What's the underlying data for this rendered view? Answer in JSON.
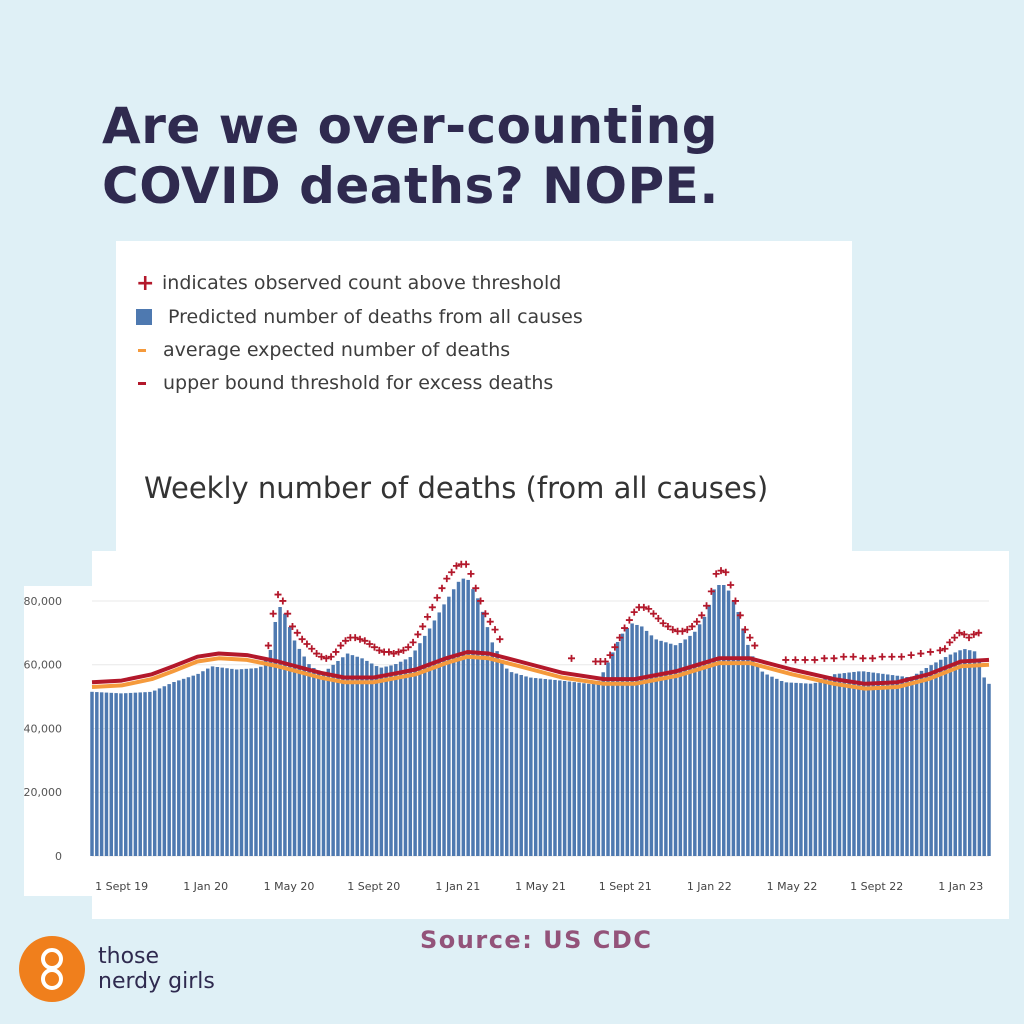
{
  "headline": {
    "line1": "Are we over-counting",
    "line2": "COVID deaths? NOPE."
  },
  "legend": {
    "observed": "indicates observed count above threshold",
    "predicted": "Predicted number of deaths from all causes",
    "average": "average expected number of deaths",
    "upper": "upper bound threshold for excess deaths"
  },
  "source": "Source: US CDC",
  "brand": {
    "line1": "those",
    "line2": "nerdy girls"
  },
  "colors": {
    "bars": "#4e79b0",
    "threshold": "#b3182b",
    "average": "#f59a3c",
    "background": "#dff0f6",
    "headline": "#2f2a4f",
    "source": "#93537a",
    "logo": "#f07f1c"
  },
  "chart_data": {
    "type": "bar",
    "title": "Weekly number of deaths (from all causes)",
    "xlabel": "",
    "ylabel": "",
    "ylim": [
      0,
      85000
    ],
    "yticks": [
      0,
      20000,
      40000,
      60000,
      80000
    ],
    "ytick_labels": [
      "0",
      "20,000",
      "40,000",
      "60,000",
      "80,000"
    ],
    "x_range": [
      "2019-07-20",
      "2023-02-11"
    ],
    "xticks": [
      {
        "date": "2019-09-01",
        "label": "1 Sept 19"
      },
      {
        "date": "2020-01-01",
        "label": "1 Jan 20"
      },
      {
        "date": "2020-05-01",
        "label": "1 May 20"
      },
      {
        "date": "2020-09-01",
        "label": "1 Sept 20"
      },
      {
        "date": "2021-01-01",
        "label": "1 Jan 21"
      },
      {
        "date": "2021-05-01",
        "label": "1 May 21"
      },
      {
        "date": "2021-09-01",
        "label": "1 Sept 21"
      },
      {
        "date": "2022-01-01",
        "label": "1 Jan 22"
      },
      {
        "date": "2022-05-01",
        "label": "1 May 22"
      },
      {
        "date": "2022-09-01",
        "label": "1 Sept 22"
      },
      {
        "date": "2023-01-01",
        "label": "1 Jan 23"
      }
    ],
    "series": [
      {
        "name": "Predicted number of deaths from all causes",
        "kind": "bars",
        "points": [
          [
            "2019-07-20",
            51500
          ],
          [
            "2019-09-01",
            51000
          ],
          [
            "2019-10-15",
            51500
          ],
          [
            "2019-11-15",
            54500
          ],
          [
            "2019-12-20",
            57000
          ],
          [
            "2020-01-10",
            59500
          ],
          [
            "2020-02-15",
            58500
          ],
          [
            "2020-03-20",
            59000
          ],
          [
            "2020-04-05",
            65000
          ],
          [
            "2020-04-15",
            79000
          ],
          [
            "2020-04-25",
            76000
          ],
          [
            "2020-05-10",
            67000
          ],
          [
            "2020-06-01",
            59500
          ],
          [
            "2020-06-20",
            57500
          ],
          [
            "2020-07-10",
            61000
          ],
          [
            "2020-07-25",
            63500
          ],
          [
            "2020-08-15",
            62000
          ],
          [
            "2020-09-10",
            59000
          ],
          [
            "2020-10-01",
            60000
          ],
          [
            "2020-10-25",
            62500
          ],
          [
            "2020-11-20",
            71000
          ],
          [
            "2020-12-15",
            80000
          ],
          [
            "2021-01-05",
            87000
          ],
          [
            "2021-01-15",
            87000
          ],
          [
            "2021-02-01",
            80000
          ],
          [
            "2021-02-20",
            67000
          ],
          [
            "2021-03-15",
            58000
          ],
          [
            "2021-04-15",
            56000
          ],
          [
            "2021-06-01",
            55000
          ],
          [
            "2021-07-10",
            54000
          ],
          [
            "2021-07-25",
            55000
          ],
          [
            "2021-08-10",
            62000
          ],
          [
            "2021-08-25",
            69000
          ],
          [
            "2021-09-10",
            73000
          ],
          [
            "2021-09-25",
            72000
          ],
          [
            "2021-10-15",
            68000
          ],
          [
            "2021-11-15",
            66000
          ],
          [
            "2021-12-10",
            70000
          ],
          [
            "2021-12-28",
            76000
          ],
          [
            "2022-01-10",
            85000
          ],
          [
            "2022-01-25",
            85000
          ],
          [
            "2022-02-10",
            78000
          ],
          [
            "2022-03-01",
            64000
          ],
          [
            "2022-03-20",
            57500
          ],
          [
            "2022-04-20",
            54500
          ],
          [
            "2022-06-01",
            54000
          ],
          [
            "2022-07-01",
            57000
          ],
          [
            "2022-08-10",
            58000
          ],
          [
            "2022-09-15",
            57000
          ],
          [
            "2022-10-20",
            56000
          ],
          [
            "2022-11-20",
            60000
          ],
          [
            "2022-12-15",
            63000
          ],
          [
            "2023-01-05",
            65000
          ],
          [
            "2023-01-25",
            64000
          ],
          [
            "2023-02-04",
            56000
          ],
          [
            "2023-02-11",
            54000
          ]
        ]
      },
      {
        "name": "upper bound threshold for excess deaths",
        "kind": "line",
        "points": [
          [
            "2019-07-20",
            54500
          ],
          [
            "2019-09-01",
            55000
          ],
          [
            "2019-10-15",
            57000
          ],
          [
            "2019-11-15",
            59500
          ],
          [
            "2019-12-20",
            62500
          ],
          [
            "2020-01-20",
            63500
          ],
          [
            "2020-03-01",
            63000
          ],
          [
            "2020-04-15",
            61000
          ],
          [
            "2020-06-15",
            57500
          ],
          [
            "2020-07-20",
            56000
          ],
          [
            "2020-09-01",
            56000
          ],
          [
            "2020-11-01",
            58500
          ],
          [
            "2020-12-15",
            62000
          ],
          [
            "2021-01-15",
            64000
          ],
          [
            "2021-02-15",
            63500
          ],
          [
            "2021-04-01",
            61000
          ],
          [
            "2021-06-01",
            57500
          ],
          [
            "2021-08-01",
            55500
          ],
          [
            "2021-09-15",
            55500
          ],
          [
            "2021-11-15",
            58000
          ],
          [
            "2022-01-15",
            62000
          ],
          [
            "2022-03-01",
            62000
          ],
          [
            "2022-05-01",
            58500
          ],
          [
            "2022-07-01",
            55500
          ],
          [
            "2022-08-15",
            54000
          ],
          [
            "2022-10-01",
            54500
          ],
          [
            "2022-11-15",
            57000
          ],
          [
            "2023-01-01",
            61000
          ],
          [
            "2023-02-11",
            61500
          ]
        ]
      },
      {
        "name": "average expected number of deaths",
        "kind": "line",
        "points": [
          [
            "2019-07-20",
            53000
          ],
          [
            "2019-09-01",
            53500
          ],
          [
            "2019-10-15",
            55500
          ],
          [
            "2019-11-15",
            58000
          ],
          [
            "2019-12-20",
            61000
          ],
          [
            "2020-01-20",
            62000
          ],
          [
            "2020-03-01",
            61500
          ],
          [
            "2020-04-15",
            59500
          ],
          [
            "2020-06-15",
            56000
          ],
          [
            "2020-07-20",
            54500
          ],
          [
            "2020-09-01",
            54500
          ],
          [
            "2020-11-01",
            57000
          ],
          [
            "2020-12-15",
            60500
          ],
          [
            "2021-01-15",
            62500
          ],
          [
            "2021-02-15",
            62000
          ],
          [
            "2021-04-01",
            59500
          ],
          [
            "2021-06-01",
            56000
          ],
          [
            "2021-08-01",
            54000
          ],
          [
            "2021-09-15",
            54000
          ],
          [
            "2021-11-15",
            56500
          ],
          [
            "2022-01-15",
            60500
          ],
          [
            "2022-03-01",
            60500
          ],
          [
            "2022-05-01",
            57000
          ],
          [
            "2022-07-01",
            54000
          ],
          [
            "2022-08-15",
            52500
          ],
          [
            "2022-10-01",
            53000
          ],
          [
            "2022-11-15",
            55500
          ],
          [
            "2023-01-01",
            59500
          ],
          [
            "2023-02-11",
            60000
          ]
        ]
      },
      {
        "name": "indicates observed count above threshold",
        "kind": "markers",
        "points": [
          [
            "2020-04-01",
            66000
          ],
          [
            "2020-04-08",
            76000
          ],
          [
            "2020-04-15",
            82000
          ],
          [
            "2020-04-22",
            80000
          ],
          [
            "2020-04-29",
            76000
          ],
          [
            "2020-05-06",
            72000
          ],
          [
            "2020-05-13",
            70000
          ],
          [
            "2020-05-20",
            68000
          ],
          [
            "2020-05-27",
            66500
          ],
          [
            "2020-06-03",
            65000
          ],
          [
            "2020-06-10",
            63500
          ],
          [
            "2020-06-17",
            62500
          ],
          [
            "2020-06-24",
            62000
          ],
          [
            "2020-07-01",
            62500
          ],
          [
            "2020-07-08",
            64000
          ],
          [
            "2020-07-15",
            66000
          ],
          [
            "2020-07-22",
            67500
          ],
          [
            "2020-07-29",
            68500
          ],
          [
            "2020-08-05",
            68500
          ],
          [
            "2020-08-12",
            68000
          ],
          [
            "2020-08-19",
            67500
          ],
          [
            "2020-08-26",
            66500
          ],
          [
            "2020-09-02",
            65500
          ],
          [
            "2020-09-09",
            64500
          ],
          [
            "2020-09-16",
            64000
          ],
          [
            "2020-09-23",
            64000
          ],
          [
            "2020-09-30",
            63500
          ],
          [
            "2020-10-07",
            64000
          ],
          [
            "2020-10-14",
            64500
          ],
          [
            "2020-10-21",
            65500
          ],
          [
            "2020-10-28",
            67000
          ],
          [
            "2020-11-04",
            69500
          ],
          [
            "2020-11-11",
            72000
          ],
          [
            "2020-11-18",
            75000
          ],
          [
            "2020-11-25",
            78000
          ],
          [
            "2020-12-02",
            81000
          ],
          [
            "2020-12-09",
            84000
          ],
          [
            "2020-12-16",
            87000
          ],
          [
            "2020-12-23",
            89000
          ],
          [
            "2020-12-30",
            91000
          ],
          [
            "2021-01-06",
            91500
          ],
          [
            "2021-01-13",
            91500
          ],
          [
            "2021-01-20",
            88500
          ],
          [
            "2021-01-27",
            84000
          ],
          [
            "2021-02-03",
            80000
          ],
          [
            "2021-02-10",
            76000
          ],
          [
            "2021-02-17",
            73500
          ],
          [
            "2021-02-24",
            71000
          ],
          [
            "2021-03-03",
            68000
          ],
          [
            "2021-06-15",
            62000
          ],
          [
            "2021-07-20",
            61000
          ],
          [
            "2021-07-27",
            61000
          ],
          [
            "2021-08-03",
            61000
          ],
          [
            "2021-08-10",
            63000
          ],
          [
            "2021-08-17",
            65500
          ],
          [
            "2021-08-24",
            68500
          ],
          [
            "2021-08-31",
            71500
          ],
          [
            "2021-09-07",
            74000
          ],
          [
            "2021-09-14",
            76500
          ],
          [
            "2021-09-21",
            78000
          ],
          [
            "2021-09-28",
            78000
          ],
          [
            "2021-10-05",
            77500
          ],
          [
            "2021-10-12",
            76000
          ],
          [
            "2021-10-19",
            74500
          ],
          [
            "2021-10-26",
            73000
          ],
          [
            "2021-11-02",
            72000
          ],
          [
            "2021-11-09",
            71000
          ],
          [
            "2021-11-16",
            70500
          ],
          [
            "2021-11-23",
            70500
          ],
          [
            "2021-11-30",
            71000
          ],
          [
            "2021-12-07",
            72000
          ],
          [
            "2021-12-14",
            73500
          ],
          [
            "2021-12-21",
            75500
          ],
          [
            "2021-12-28",
            78500
          ],
          [
            "2022-01-04",
            83000
          ],
          [
            "2022-01-11",
            88500
          ],
          [
            "2022-01-18",
            89500
          ],
          [
            "2022-01-25",
            89000
          ],
          [
            "2022-02-01",
            85000
          ],
          [
            "2022-02-08",
            80000
          ],
          [
            "2022-02-15",
            75500
          ],
          [
            "2022-02-22",
            71000
          ],
          [
            "2022-03-01",
            68500
          ],
          [
            "2022-03-08",
            66000
          ],
          [
            "2022-04-22",
            61500
          ],
          [
            "2022-05-06",
            61500
          ],
          [
            "2022-05-20",
            61500
          ],
          [
            "2022-06-03",
            61500
          ],
          [
            "2022-06-17",
            62000
          ],
          [
            "2022-07-01",
            62000
          ],
          [
            "2022-07-15",
            62500
          ],
          [
            "2022-07-29",
            62500
          ],
          [
            "2022-08-12",
            62000
          ],
          [
            "2022-08-26",
            62000
          ],
          [
            "2022-09-09",
            62500
          ],
          [
            "2022-09-23",
            62500
          ],
          [
            "2022-10-07",
            62500
          ],
          [
            "2022-10-21",
            63000
          ],
          [
            "2022-11-04",
            63500
          ],
          [
            "2022-11-18",
            64000
          ],
          [
            "2022-12-02",
            64500
          ],
          [
            "2022-12-09",
            65000
          ],
          [
            "2022-12-16",
            67000
          ],
          [
            "2022-12-23",
            68500
          ],
          [
            "2022-12-30",
            70000
          ],
          [
            "2023-01-06",
            69500
          ],
          [
            "2023-01-13",
            68500
          ],
          [
            "2023-01-20",
            69500
          ],
          [
            "2023-01-27",
            70000
          ]
        ]
      }
    ]
  }
}
